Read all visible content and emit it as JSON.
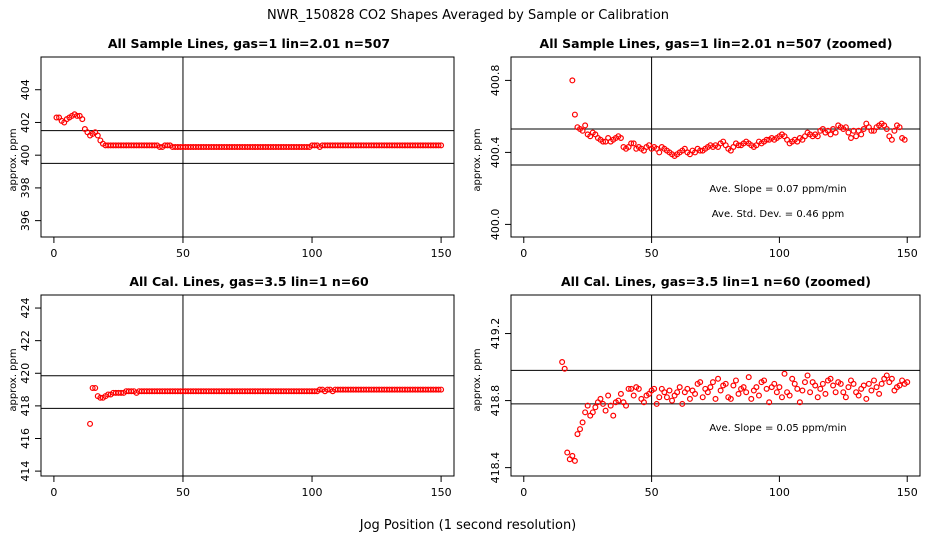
{
  "figure": {
    "title": "NWR_150828  CO2 Shapes Averaged by Sample or Calibration",
    "xlabel": "Jog Position (1 second resolution)"
  },
  "colors": {
    "points": "#ff0000",
    "lines": "#000000"
  },
  "chart_data": [
    {
      "type": "scatter",
      "title": "All Sample Lines, gas=1 lin=2.01 n=507",
      "ylabel": "approx. ppm",
      "xlim": [
        -5,
        155
      ],
      "ylim": [
        395,
        406
      ],
      "xticks": [
        "0",
        "50",
        "100",
        "150"
      ],
      "xtick_values": [
        0,
        50,
        100,
        150
      ],
      "yticks": [
        "396",
        "398",
        "400",
        "402",
        "404"
      ],
      "ytick_values": [
        396,
        398,
        400,
        402,
        404
      ],
      "vline": 50,
      "hlines": [
        401.5,
        399.5
      ],
      "annotations": [],
      "x_start": 1,
      "values": [
        402.3,
        402.3,
        402.1,
        402.0,
        402.2,
        402.3,
        402.4,
        402.5,
        402.4,
        402.4,
        402.2,
        401.6,
        401.4,
        401.2,
        401.3,
        401.4,
        401.2,
        400.9,
        400.7,
        400.6,
        400.6,
        400.6,
        400.6,
        400.6,
        400.6,
        400.6,
        400.6,
        400.6,
        400.6,
        400.6,
        400.6,
        400.6,
        400.6,
        400.6,
        400.6,
        400.6,
        400.6,
        400.6,
        400.6,
        400.6,
        400.5,
        400.5,
        400.6,
        400.6,
        400.6,
        400.5,
        400.5,
        400.5,
        400.5,
        400.5,
        400.5,
        400.5,
        400.5,
        400.5,
        400.5,
        400.5,
        400.5,
        400.5,
        400.5,
        400.5,
        400.5,
        400.5,
        400.5,
        400.5,
        400.5,
        400.5,
        400.5,
        400.5,
        400.5,
        400.5,
        400.5,
        400.5,
        400.5,
        400.5,
        400.5,
        400.5,
        400.5,
        400.5,
        400.5,
        400.5,
        400.5,
        400.5,
        400.5,
        400.5,
        400.5,
        400.5,
        400.5,
        400.5,
        400.5,
        400.5,
        400.5,
        400.5,
        400.5,
        400.5,
        400.5,
        400.5,
        400.5,
        400.5,
        400.5,
        400.6,
        400.6,
        400.6,
        400.5,
        400.6,
        400.6,
        400.6,
        400.6,
        400.6,
        400.6,
        400.6,
        400.6,
        400.6,
        400.6,
        400.6,
        400.6,
        400.6,
        400.6,
        400.6,
        400.6,
        400.6,
        400.6,
        400.6,
        400.6,
        400.6,
        400.6,
        400.6,
        400.6,
        400.6,
        400.6,
        400.6,
        400.6,
        400.6,
        400.6,
        400.6,
        400.6,
        400.6,
        400.6,
        400.6,
        400.6,
        400.6,
        400.6,
        400.6,
        400.6,
        400.6,
        400.6,
        400.6,
        400.6,
        400.6,
        400.6,
        400.6
      ]
    },
    {
      "type": "scatter",
      "title": "All Sample Lines, gas=1 lin=2.01 n=507 (zoomed)",
      "ylabel": "approx. ppm",
      "xlim": [
        -5,
        155
      ],
      "ylim": [
        399.93,
        400.93
      ],
      "xticks": [
        "0",
        "50",
        "100",
        "150"
      ],
      "xtick_values": [
        0,
        50,
        100,
        150
      ],
      "yticks": [
        "400.0",
        "400.4",
        "400.8"
      ],
      "ytick_values": [
        400.0,
        400.4,
        400.8
      ],
      "vline": 50,
      "hlines": [
        400.53,
        400.33
      ],
      "annotations": [
        "Ave. Slope =  0.07  ppm/min",
        "Ave. Std. Dev. =  0.46  ppm"
      ],
      "x_start": 19,
      "values": [
        400.8,
        400.61,
        400.54,
        400.53,
        400.52,
        400.55,
        400.5,
        400.49,
        400.51,
        400.5,
        400.48,
        400.47,
        400.46,
        400.46,
        400.48,
        400.46,
        400.47,
        400.48,
        400.49,
        400.48,
        400.43,
        400.42,
        400.43,
        400.45,
        400.45,
        400.42,
        400.43,
        400.42,
        400.41,
        400.43,
        400.44,
        400.42,
        400.43,
        400.42,
        400.4,
        400.43,
        400.42,
        400.41,
        400.4,
        400.39,
        400.38,
        400.39,
        400.4,
        400.41,
        400.42,
        400.4,
        400.39,
        400.41,
        400.4,
        400.42,
        400.41,
        400.41,
        400.42,
        400.43,
        400.44,
        400.43,
        400.44,
        400.43,
        400.45,
        400.46,
        400.44,
        400.42,
        400.41,
        400.43,
        400.45,
        400.44,
        400.44,
        400.45,
        400.46,
        400.45,
        400.44,
        400.43,
        400.44,
        400.46,
        400.45,
        400.46,
        400.47,
        400.47,
        400.48,
        400.47,
        400.48,
        400.49,
        400.5,
        400.49,
        400.47,
        400.45,
        400.46,
        400.47,
        400.46,
        400.48,
        400.47,
        400.49,
        400.51,
        400.5,
        400.49,
        400.5,
        400.49,
        400.52,
        400.53,
        400.51,
        400.52,
        400.5,
        400.53,
        400.51,
        400.55,
        400.54,
        400.53,
        400.54,
        400.51,
        400.48,
        400.52,
        400.49,
        400.52,
        400.5,
        400.53,
        400.56,
        400.54,
        400.52,
        400.52,
        400.54,
        400.55,
        400.56,
        400.55,
        400.53,
        400.49,
        400.47,
        400.52,
        400.55,
        400.54,
        400.48,
        400.47
      ]
    },
    {
      "type": "scatter",
      "title": "All Cal. Lines, gas=3.5 lin=1 n=60",
      "ylabel": "approx. ppm",
      "xlim": [
        -5,
        155
      ],
      "ylim": [
        413.7,
        424.8
      ],
      "xticks": [
        "0",
        "50",
        "100",
        "150"
      ],
      "xtick_values": [
        0,
        50,
        100,
        150
      ],
      "yticks": [
        "414",
        "416",
        "418",
        "420",
        "422",
        "424"
      ],
      "ytick_values": [
        414,
        416,
        418,
        420,
        422,
        424
      ],
      "vline": 50,
      "hlines": [
        419.85,
        417.85
      ],
      "annotations": [],
      "x_start": 14,
      "values": [
        416.9,
        419.1,
        419.1,
        418.6,
        418.5,
        418.5,
        418.6,
        418.7,
        418.7,
        418.8,
        418.8,
        418.8,
        418.8,
        418.8,
        418.9,
        418.9,
        418.9,
        418.9,
        418.8,
        418.9,
        418.9,
        418.9,
        418.9,
        418.9,
        418.9,
        418.9,
        418.9,
        418.9,
        418.9,
        418.9,
        418.9,
        418.9,
        418.9,
        418.9,
        418.9,
        418.9,
        418.9,
        418.9,
        418.9,
        418.9,
        418.9,
        418.9,
        418.9,
        418.9,
        418.9,
        418.9,
        418.9,
        418.9,
        418.9,
        418.9,
        418.9,
        418.9,
        418.9,
        418.9,
        418.9,
        418.9,
        418.9,
        418.9,
        418.9,
        418.9,
        418.9,
        418.9,
        418.9,
        418.9,
        418.9,
        418.9,
        418.9,
        418.9,
        418.9,
        418.9,
        418.9,
        418.9,
        418.9,
        418.9,
        418.9,
        418.9,
        418.9,
        418.9,
        418.9,
        418.9,
        418.9,
        418.9,
        418.9,
        418.9,
        418.9,
        418.9,
        418.9,
        418.9,
        418.9,
        419.0,
        419.0,
        418.9,
        419.0,
        419.0,
        418.9,
        419.0,
        419.0,
        419.0,
        419.0,
        419.0,
        419.0,
        419.0,
        419.0,
        419.0,
        419.0,
        419.0,
        419.0,
        419.0,
        419.0,
        419.0,
        419.0,
        419.0,
        419.0,
        419.0,
        419.0,
        419.0,
        419.0,
        419.0,
        419.0,
        419.0,
        419.0,
        419.0,
        419.0,
        419.0,
        419.0,
        419.0,
        419.0,
        419.0,
        419.0,
        419.0,
        419.0,
        419.0,
        419.0,
        419.0,
        419.0,
        419.0,
        419.0
      ]
    },
    {
      "type": "scatter",
      "title": "All Cal. Lines, gas=3.5 lin=1 n=60 (zoomed)",
      "ylabel": "approx. ppm",
      "xlim": [
        -5,
        155
      ],
      "ylim": [
        418.35,
        419.43
      ],
      "xticks": [
        "0",
        "50",
        "100",
        "150"
      ],
      "xtick_values": [
        0,
        50,
        100,
        150
      ],
      "yticks": [
        "418.4",
        "418.8",
        "419.2"
      ],
      "ytick_values": [
        418.4,
        418.8,
        419.2
      ],
      "vline": 50,
      "hlines": [
        418.98,
        418.78
      ],
      "annotations": [
        "Ave. Slope =  0.05  ppm/min"
      ],
      "x_start": 15,
      "values": [
        419.03,
        418.99,
        418.49,
        418.45,
        418.47,
        418.44,
        418.6,
        418.63,
        418.67,
        418.73,
        418.77,
        418.71,
        418.73,
        418.76,
        418.79,
        418.81,
        418.78,
        418.74,
        418.83,
        418.77,
        418.71,
        418.79,
        418.8,
        418.84,
        418.79,
        418.77,
        418.87,
        418.87,
        418.83,
        418.88,
        418.87,
        418.81,
        418.79,
        418.83,
        418.84,
        418.86,
        418.87,
        418.78,
        418.82,
        418.87,
        418.85,
        418.82,
        418.86,
        418.8,
        418.83,
        418.85,
        418.88,
        418.78,
        418.85,
        418.87,
        418.81,
        418.86,
        418.84,
        418.9,
        418.91,
        418.82,
        418.87,
        418.85,
        418.88,
        418.91,
        418.81,
        418.93,
        418.86,
        418.89,
        418.9,
        418.82,
        418.81,
        418.89,
        418.92,
        418.84,
        418.87,
        418.88,
        418.85,
        418.94,
        418.81,
        418.86,
        418.88,
        418.83,
        418.91,
        418.92,
        418.87,
        418.79,
        418.88,
        418.9,
        418.85,
        418.88,
        418.82,
        418.96,
        418.85,
        418.83,
        418.93,
        418.9,
        418.87,
        418.79,
        418.86,
        418.91,
        418.95,
        418.85,
        418.91,
        418.89,
        418.82,
        418.87,
        418.9,
        418.84,
        418.92,
        418.93,
        418.89,
        418.85,
        418.91,
        418.9,
        418.85,
        418.82,
        418.88,
        418.92,
        418.9,
        418.85,
        418.83,
        418.87,
        418.89,
        418.81,
        418.9,
        418.86,
        418.92,
        418.88,
        418.84,
        418.9,
        418.93,
        418.95,
        418.91,
        418.93,
        418.86,
        418.88,
        418.89,
        418.92,
        418.9,
        418.91
      ]
    }
  ]
}
